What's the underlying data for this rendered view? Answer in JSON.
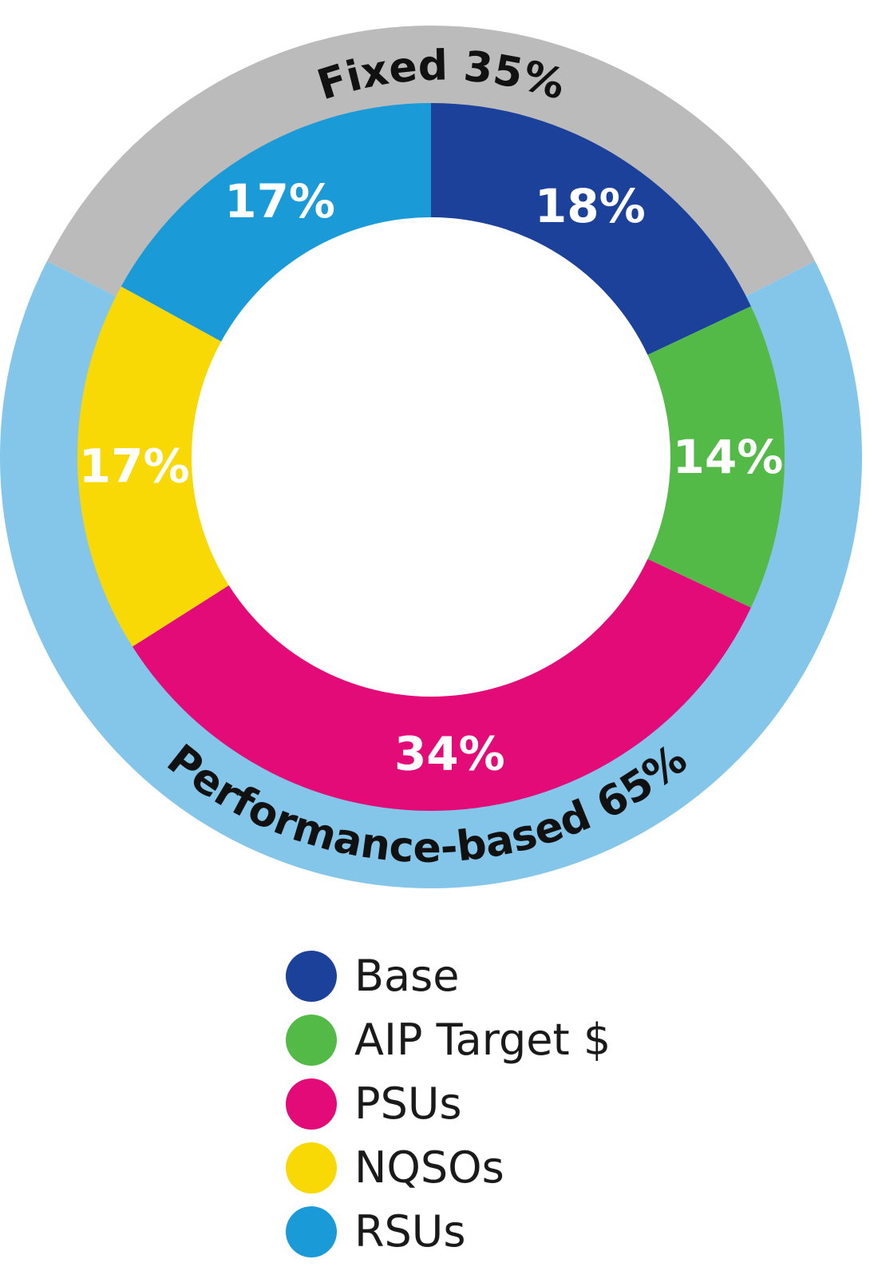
{
  "chart_data": {
    "type": "pie",
    "variant": "nested-donut",
    "inner_ring": [
      {
        "name": "Base",
        "value": 18,
        "label": "18%",
        "color": "#1c419a"
      },
      {
        "name": "AIP Target $",
        "value": 14,
        "label": "14%",
        "color": "#53b947"
      },
      {
        "name": "PSUs",
        "value": 34,
        "label": "34%",
        "color": "#e30b78"
      },
      {
        "name": "NQSOs",
        "value": 17,
        "label": "17%",
        "color": "#f8d906"
      },
      {
        "name": "RSUs",
        "value": 17,
        "label": "17%",
        "color": "#1b9ad8"
      }
    ],
    "outer_ring": [
      {
        "name": "Fixed",
        "value": 35,
        "label": "Fixed 35%",
        "color": "#bbbbbb"
      },
      {
        "name": "Performance-based",
        "value": 65,
        "label": "Performance-based 65%",
        "color": "#84c5ea"
      }
    ],
    "legend": [
      {
        "label": "Base",
        "color": "#1c419a"
      },
      {
        "label": "AIP Target $",
        "color": "#53b947"
      },
      {
        "label": "PSUs",
        "color": "#e30b78"
      },
      {
        "label": "NQSOs",
        "color": "#f8d906"
      },
      {
        "label": "RSUs",
        "color": "#1b9ad8"
      }
    ],
    "legend_position": "bottom-center"
  }
}
